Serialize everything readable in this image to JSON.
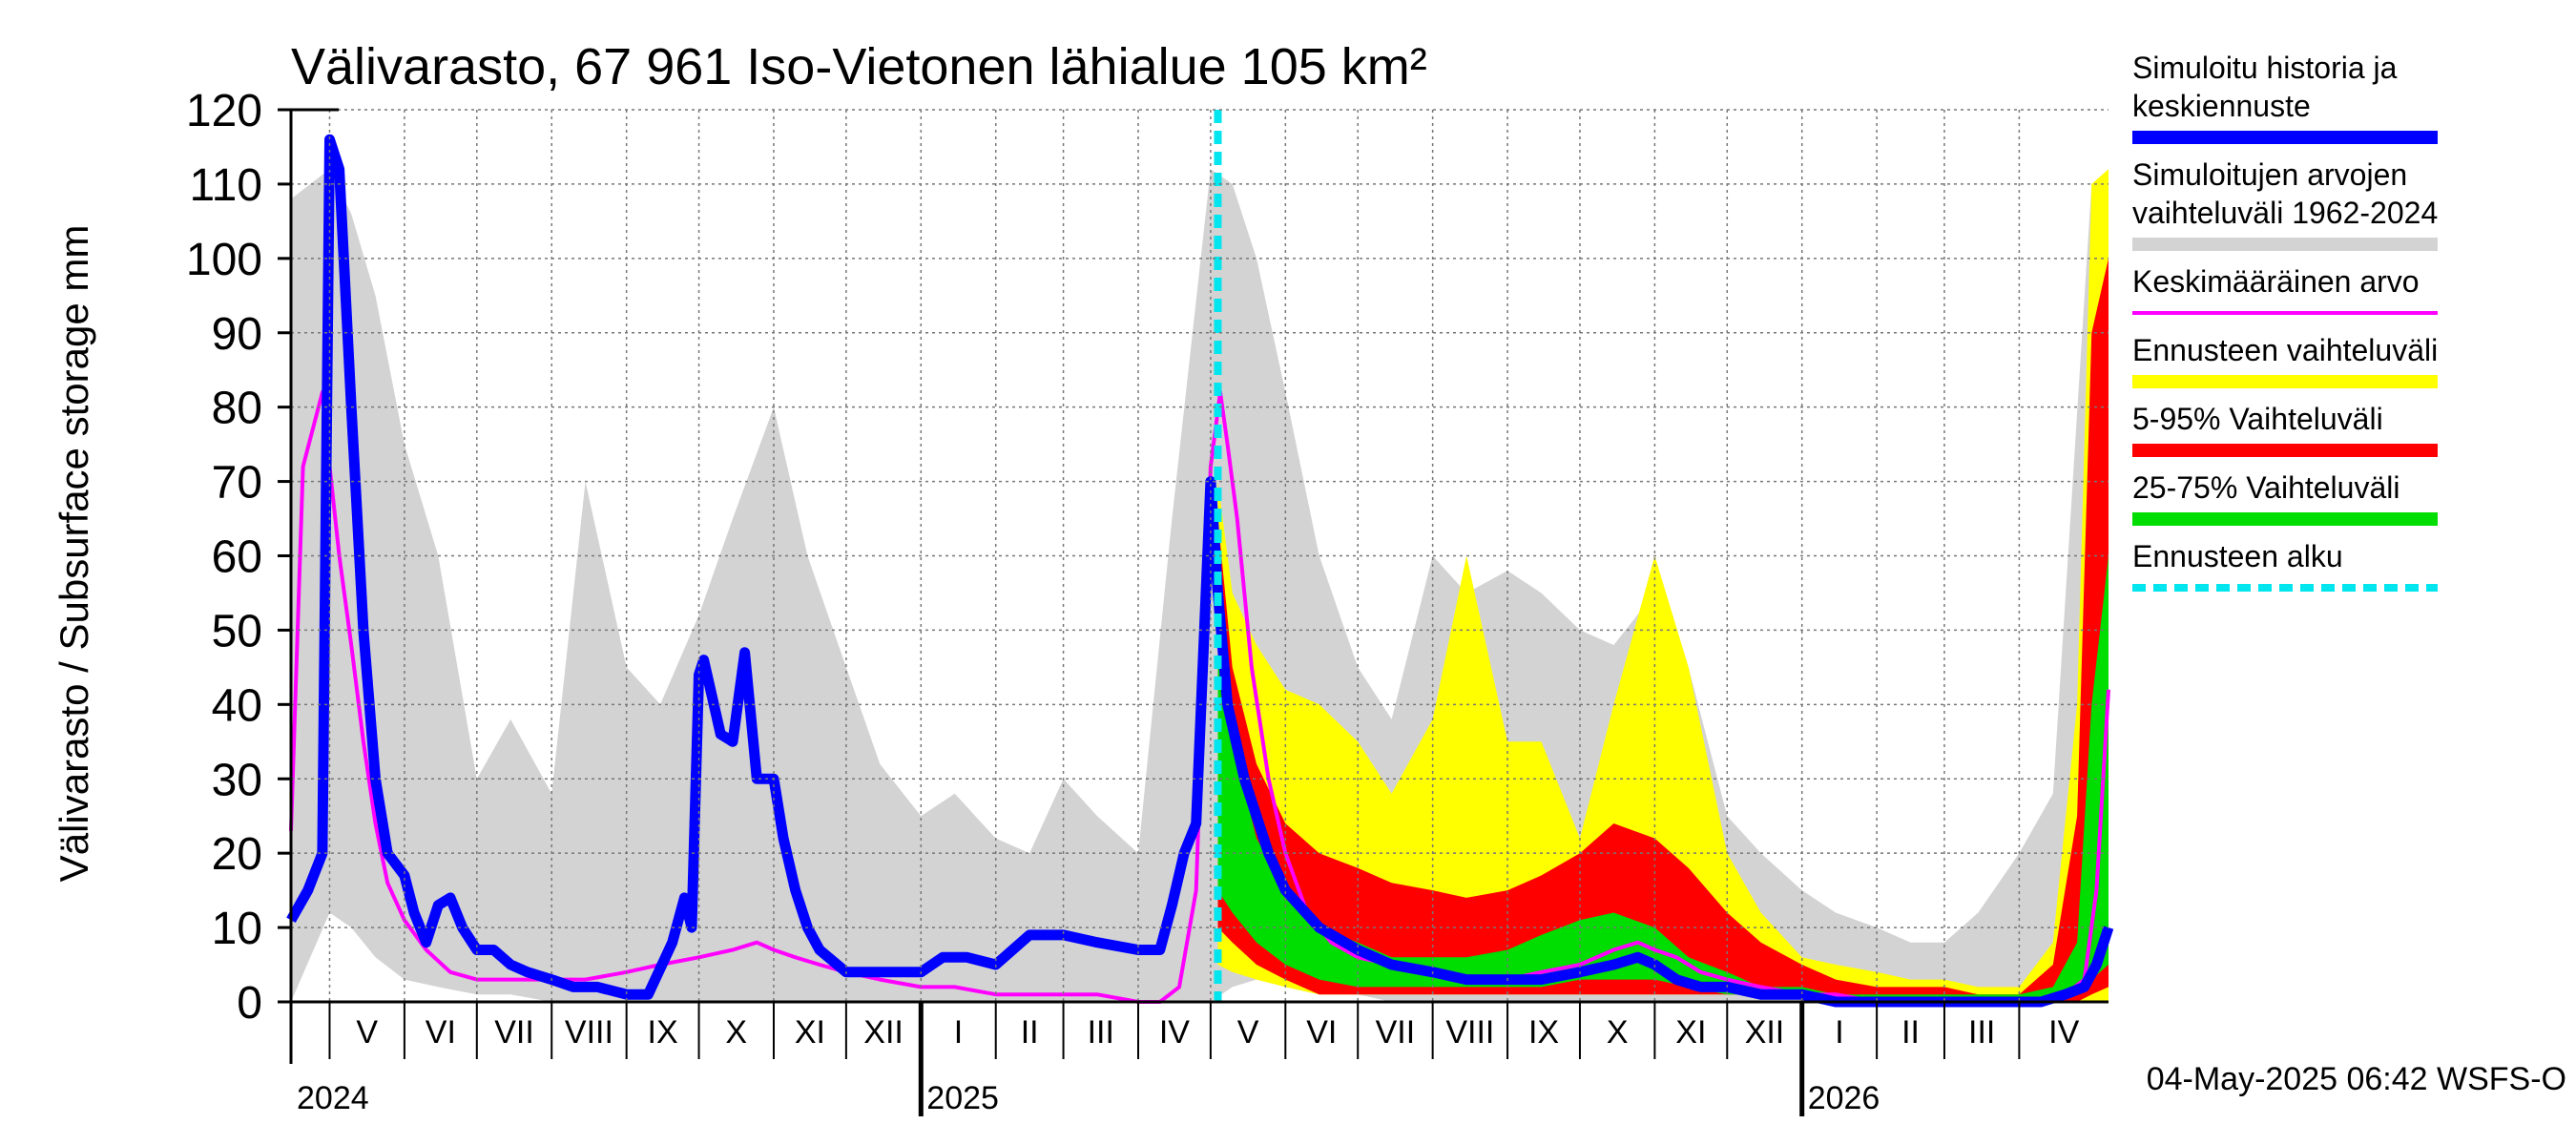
{
  "chart_data": {
    "type": "area",
    "title": "Välivarasto, 67 961 Iso-Vietonen lähialue 105 km²",
    "ylabel": "Välivarasto / Subsurface storage  mm",
    "xlabel": "",
    "ylim": [
      0,
      120
    ],
    "yticks": [
      0,
      10,
      20,
      30,
      40,
      50,
      60,
      70,
      80,
      90,
      100,
      110,
      120
    ],
    "grid": true,
    "legend_position": "right",
    "x_start": "2024-04-15",
    "x_end": "2026-05-08",
    "forecast_start": "2025-05-04",
    "months": [
      {
        "label": "V",
        "start": "2024-05-01"
      },
      {
        "label": "VI",
        "start": "2024-06-01"
      },
      {
        "label": "VII",
        "start": "2024-07-01"
      },
      {
        "label": "VIII",
        "start": "2024-08-01"
      },
      {
        "label": "IX",
        "start": "2024-09-01"
      },
      {
        "label": "X",
        "start": "2024-10-01"
      },
      {
        "label": "XI",
        "start": "2024-11-01"
      },
      {
        "label": "XII",
        "start": "2024-12-01"
      },
      {
        "label": "I",
        "start": "2025-01-01"
      },
      {
        "label": "II",
        "start": "2025-02-01"
      },
      {
        "label": "III",
        "start": "2025-03-01"
      },
      {
        "label": "IV",
        "start": "2025-04-01"
      },
      {
        "label": "V",
        "start": "2025-05-01"
      },
      {
        "label": "VI",
        "start": "2025-06-01"
      },
      {
        "label": "VII",
        "start": "2025-07-01"
      },
      {
        "label": "VIII",
        "start": "2025-08-01"
      },
      {
        "label": "IX",
        "start": "2025-09-01"
      },
      {
        "label": "X",
        "start": "2025-10-01"
      },
      {
        "label": "XI",
        "start": "2025-11-01"
      },
      {
        "label": "XII",
        "start": "2025-12-01"
      },
      {
        "label": "I",
        "start": "2026-01-01"
      },
      {
        "label": "II",
        "start": "2026-02-01"
      },
      {
        "label": "III",
        "start": "2026-03-01"
      },
      {
        "label": "IV",
        "start": "2026-04-01"
      }
    ],
    "years": [
      {
        "label": "2024",
        "date": "2024-04-15"
      },
      {
        "label": "2025",
        "date": "2025-01-01"
      },
      {
        "label": "2026",
        "date": "2026-01-01"
      }
    ],
    "series": [
      {
        "name": "Simuloitujen arvojen vaihteluväli 1962-2024",
        "color": "#d3d3d3",
        "kind": "band",
        "x": [
          "2024-04-15",
          "2024-05-01",
          "2024-05-10",
          "2024-05-20",
          "2024-06-01",
          "2024-06-15",
          "2024-07-01",
          "2024-07-15",
          "2024-08-01",
          "2024-08-15",
          "2024-09-01",
          "2024-09-15",
          "2024-10-01",
          "2024-10-15",
          "2024-11-01",
          "2024-11-15",
          "2024-12-01",
          "2024-12-15",
          "2025-01-01",
          "2025-01-15",
          "2025-02-01",
          "2025-02-15",
          "2025-03-01",
          "2025-03-15",
          "2025-04-01",
          "2025-04-15",
          "2025-05-01",
          "2025-05-10",
          "2025-05-20",
          "2025-06-01",
          "2025-06-15",
          "2025-07-01",
          "2025-07-15",
          "2025-08-01",
          "2025-08-15",
          "2025-09-01",
          "2025-09-15",
          "2025-10-01",
          "2025-10-15",
          "2025-11-01",
          "2025-11-15",
          "2025-12-01",
          "2025-12-15",
          "2026-01-01",
          "2026-01-15",
          "2026-02-01",
          "2026-02-15",
          "2026-03-01",
          "2026-03-15",
          "2026-04-01",
          "2026-04-15",
          "2026-05-01",
          "2026-05-08"
        ],
        "upper": [
          108,
          112,
          106,
          95,
          75,
          60,
          30,
          38,
          28,
          70,
          45,
          40,
          52,
          65,
          80,
          60,
          45,
          32,
          25,
          28,
          22,
          20,
          30,
          25,
          20,
          65,
          112,
          110,
          100,
          82,
          60,
          45,
          38,
          60,
          55,
          58,
          55,
          50,
          48,
          55,
          45,
          25,
          20,
          15,
          12,
          10,
          8,
          8,
          12,
          20,
          28,
          110,
          108
        ],
        "lower": [
          0,
          12,
          10,
          6,
          3,
          2,
          1,
          1,
          0,
          0,
          0,
          0,
          0,
          0,
          0,
          0,
          0,
          0,
          0,
          0,
          0,
          0,
          0,
          0,
          0,
          0,
          0,
          2,
          3,
          2,
          1,
          1,
          0,
          0,
          0,
          0,
          0,
          0,
          0,
          0,
          0,
          0,
          0,
          0,
          0,
          0,
          0,
          0,
          0,
          0,
          0,
          0,
          0
        ]
      },
      {
        "name": "Ennusteen vaihteluväli",
        "color": "#ffff00",
        "kind": "band",
        "x": [
          "2025-05-04",
          "2025-05-10",
          "2025-05-20",
          "2025-06-01",
          "2025-06-15",
          "2025-07-01",
          "2025-07-15",
          "2025-08-01",
          "2025-08-15",
          "2025-09-01",
          "2025-09-15",
          "2025-10-01",
          "2025-10-15",
          "2025-11-01",
          "2025-11-15",
          "2025-12-01",
          "2025-12-15",
          "2026-01-01",
          "2026-01-15",
          "2026-02-01",
          "2026-02-15",
          "2026-03-01",
          "2026-03-15",
          "2026-04-01",
          "2026-04-15",
          "2026-04-25",
          "2026-05-01",
          "2026-05-08"
        ],
        "upper": [
          70,
          55,
          48,
          42,
          40,
          35,
          28,
          38,
          60,
          35,
          35,
          22,
          40,
          60,
          45,
          20,
          12,
          6,
          5,
          4,
          3,
          3,
          2,
          2,
          8,
          40,
          110,
          112
        ],
        "lower": [
          5,
          4,
          3,
          2,
          1,
          1,
          1,
          1,
          1,
          1,
          1,
          1,
          1,
          1,
          1,
          1,
          1,
          1,
          0,
          0,
          0,
          0,
          0,
          0,
          0,
          0,
          0,
          0
        ]
      },
      {
        "name": "5-95% Vaihteluväli",
        "color": "#ff0000",
        "kind": "band",
        "x": [
          "2025-05-04",
          "2025-05-10",
          "2025-05-20",
          "2025-06-01",
          "2025-06-15",
          "2025-07-01",
          "2025-07-15",
          "2025-08-01",
          "2025-08-15",
          "2025-09-01",
          "2025-09-15",
          "2025-10-01",
          "2025-10-15",
          "2025-11-01",
          "2025-11-15",
          "2025-12-01",
          "2025-12-15",
          "2026-01-01",
          "2026-01-15",
          "2026-02-01",
          "2026-02-15",
          "2026-03-01",
          "2026-03-15",
          "2026-04-01",
          "2026-04-15",
          "2026-04-25",
          "2026-05-01",
          "2026-05-08"
        ],
        "upper": [
          65,
          45,
          32,
          24,
          20,
          18,
          16,
          15,
          14,
          15,
          17,
          20,
          24,
          22,
          18,
          12,
          8,
          5,
          3,
          2,
          2,
          2,
          1,
          1,
          5,
          25,
          90,
          100
        ],
        "lower": [
          10,
          8,
          5,
          3,
          1,
          1,
          1,
          1,
          1,
          1,
          1,
          1,
          1,
          1,
          1,
          1,
          1,
          1,
          0,
          0,
          0,
          0,
          0,
          0,
          0,
          0,
          1,
          2
        ]
      },
      {
        "name": "25-75% Vaihteluväli",
        "color": "#00dd00",
        "kind": "band",
        "x": [
          "2025-05-04",
          "2025-05-10",
          "2025-05-20",
          "2025-06-01",
          "2025-06-15",
          "2025-07-01",
          "2025-07-15",
          "2025-08-01",
          "2025-08-15",
          "2025-09-01",
          "2025-09-15",
          "2025-10-01",
          "2025-10-15",
          "2025-11-01",
          "2025-11-15",
          "2025-12-01",
          "2025-12-15",
          "2026-01-01",
          "2026-01-15",
          "2026-02-01",
          "2026-02-15",
          "2026-03-01",
          "2026-03-15",
          "2026-04-01",
          "2026-04-15",
          "2026-04-25",
          "2026-05-01",
          "2026-05-08"
        ],
        "upper": [
          60,
          35,
          22,
          15,
          10,
          8,
          6,
          6,
          6,
          7,
          9,
          11,
          12,
          10,
          6,
          4,
          2,
          2,
          1,
          1,
          1,
          1,
          1,
          1,
          2,
          8,
          40,
          60
        ],
        "lower": [
          15,
          12,
          8,
          5,
          3,
          2,
          2,
          2,
          2,
          2,
          2,
          3,
          3,
          3,
          2,
          1,
          1,
          1,
          0,
          0,
          0,
          0,
          0,
          0,
          0,
          1,
          3,
          5
        ]
      },
      {
        "name": "Keskimääräinen arvo",
        "color": "#ff00ff",
        "kind": "line",
        "x": [
          "2024-04-15",
          "2024-04-20",
          "2024-04-28",
          "2024-05-01",
          "2024-05-05",
          "2024-05-10",
          "2024-05-15",
          "2024-05-20",
          "2024-05-25",
          "2024-06-01",
          "2024-06-10",
          "2024-06-20",
          "2024-07-01",
          "2024-07-10",
          "2024-07-20",
          "2024-08-01",
          "2024-08-15",
          "2024-09-01",
          "2024-09-15",
          "2024-10-01",
          "2024-10-15",
          "2024-10-25",
          "2024-11-01",
          "2024-11-10",
          "2024-11-20",
          "2024-12-01",
          "2024-12-15",
          "2025-01-01",
          "2025-01-15",
          "2025-02-01",
          "2025-02-15",
          "2025-03-01",
          "2025-03-15",
          "2025-04-01",
          "2025-04-10",
          "2025-04-18",
          "2025-04-25",
          "2025-05-01",
          "2025-05-05",
          "2025-05-08",
          "2025-05-12",
          "2025-05-18",
          "2025-05-25",
          "2025-06-01",
          "2025-06-10",
          "2025-06-20",
          "2025-07-01",
          "2025-07-15",
          "2025-08-01",
          "2025-08-15",
          "2025-09-01",
          "2025-09-15",
          "2025-10-01",
          "2025-10-15",
          "2025-10-25",
          "2025-11-01",
          "2025-11-10",
          "2025-11-20",
          "2025-12-01",
          "2025-12-15",
          "2026-01-01",
          "2026-01-15",
          "2026-02-01",
          "2026-02-15",
          "2026-03-01",
          "2026-03-15",
          "2026-04-01",
          "2026-04-10",
          "2026-04-20",
          "2026-04-28",
          "2026-05-03",
          "2026-05-08"
        ],
        "y": [
          23,
          72,
          82,
          72,
          60,
          48,
          35,
          24,
          16,
          11,
          7,
          4,
          3,
          3,
          3,
          3,
          3,
          4,
          5,
          6,
          7,
          8,
          7,
          6,
          5,
          4,
          3,
          2,
          2,
          1,
          1,
          1,
          1,
          0,
          0,
          2,
          15,
          72,
          82,
          75,
          65,
          45,
          30,
          20,
          12,
          8,
          6,
          5,
          4,
          3,
          3,
          4,
          5,
          7,
          8,
          7,
          6,
          4,
          3,
          2,
          1,
          1,
          0,
          0,
          0,
          0,
          0,
          0,
          1,
          3,
          15,
          42
        ]
      },
      {
        "name": "Simuloitu historia ja keskiennuste",
        "color": "#0000ff",
        "kind": "line",
        "x": [
          "2024-04-15",
          "2024-04-22",
          "2024-04-28",
          "2024-05-01",
          "2024-05-05",
          "2024-05-10",
          "2024-05-15",
          "2024-05-20",
          "2024-05-25",
          "2024-06-01",
          "2024-06-05",
          "2024-06-10",
          "2024-06-15",
          "2024-06-20",
          "2024-06-25",
          "2024-07-01",
          "2024-07-08",
          "2024-07-15",
          "2024-07-22",
          "2024-08-01",
          "2024-08-10",
          "2024-08-20",
          "2024-09-01",
          "2024-09-10",
          "2024-09-20",
          "2024-09-25",
          "2024-09-28",
          "2024-10-01",
          "2024-10-03",
          "2024-10-10",
          "2024-10-15",
          "2024-10-20",
          "2024-10-25",
          "2024-11-01",
          "2024-11-05",
          "2024-11-10",
          "2024-11-15",
          "2024-11-20",
          "2024-12-01",
          "2024-12-15",
          "2025-01-01",
          "2025-01-10",
          "2025-01-20",
          "2025-02-01",
          "2025-02-15",
          "2025-03-01",
          "2025-03-15",
          "2025-04-01",
          "2025-04-10",
          "2025-04-15",
          "2025-04-20",
          "2025-04-25",
          "2025-05-01",
          "2025-05-04",
          "2025-05-08",
          "2025-05-15",
          "2025-05-25",
          "2025-06-01",
          "2025-06-15",
          "2025-07-01",
          "2025-07-15",
          "2025-08-01",
          "2025-08-15",
          "2025-09-01",
          "2025-09-15",
          "2025-10-01",
          "2025-10-15",
          "2025-10-25",
          "2025-11-01",
          "2025-11-10",
          "2025-11-20",
          "2025-12-01",
          "2025-12-15",
          "2026-01-01",
          "2026-01-15",
          "2026-02-01",
          "2026-02-15",
          "2026-03-01",
          "2026-03-15",
          "2026-04-01",
          "2026-04-10",
          "2026-04-20",
          "2026-04-28",
          "2026-05-03",
          "2026-05-08"
        ],
        "y": [
          11,
          15,
          20,
          116,
          112,
          80,
          50,
          30,
          20,
          17,
          12,
          8,
          13,
          14,
          10,
          7,
          7,
          5,
          4,
          3,
          2,
          2,
          1,
          1,
          8,
          14,
          10,
          44,
          46,
          36,
          35,
          47,
          30,
          30,
          22,
          15,
          10,
          7,
          4,
          4,
          4,
          6,
          6,
          5,
          9,
          9,
          8,
          7,
          7,
          13,
          20,
          24,
          70,
          55,
          40,
          30,
          20,
          15,
          10,
          7,
          5,
          4,
          3,
          3,
          3,
          4,
          5,
          6,
          5,
          3,
          2,
          2,
          1,
          1,
          0,
          0,
          0,
          0,
          0,
          0,
          0,
          1,
          2,
          5,
          10
        ]
      }
    ]
  },
  "legend": [
    {
      "label_line1": "Simuloitu historia ja",
      "label_line2": "keskiennuste",
      "color": "#0000ff",
      "style": "thick"
    },
    {
      "label_line1": "Simuloitujen arvojen",
      "label_line2": "vaihteluväli 1962-2024",
      "color": "#d3d3d3",
      "style": "band"
    },
    {
      "label_line1": "Keskimääräinen arvo",
      "label_line2": "",
      "color": "#ff00ff",
      "style": "thin"
    },
    {
      "label_line1": "Ennusteen vaihteluväli",
      "label_line2": "",
      "color": "#ffff00",
      "style": "band"
    },
    {
      "label_line1": "5-95% Vaihteluväli",
      "label_line2": "",
      "color": "#ff0000",
      "style": "band"
    },
    {
      "label_line1": "25-75% Vaihteluväli",
      "label_line2": "",
      "color": "#00dd00",
      "style": "band"
    },
    {
      "label_line1": "Ennusteen alku",
      "label_line2": "",
      "color": "#00e5ee",
      "style": "dashed"
    }
  ],
  "footer": "04-May-2025 06:42 WSFS-O"
}
